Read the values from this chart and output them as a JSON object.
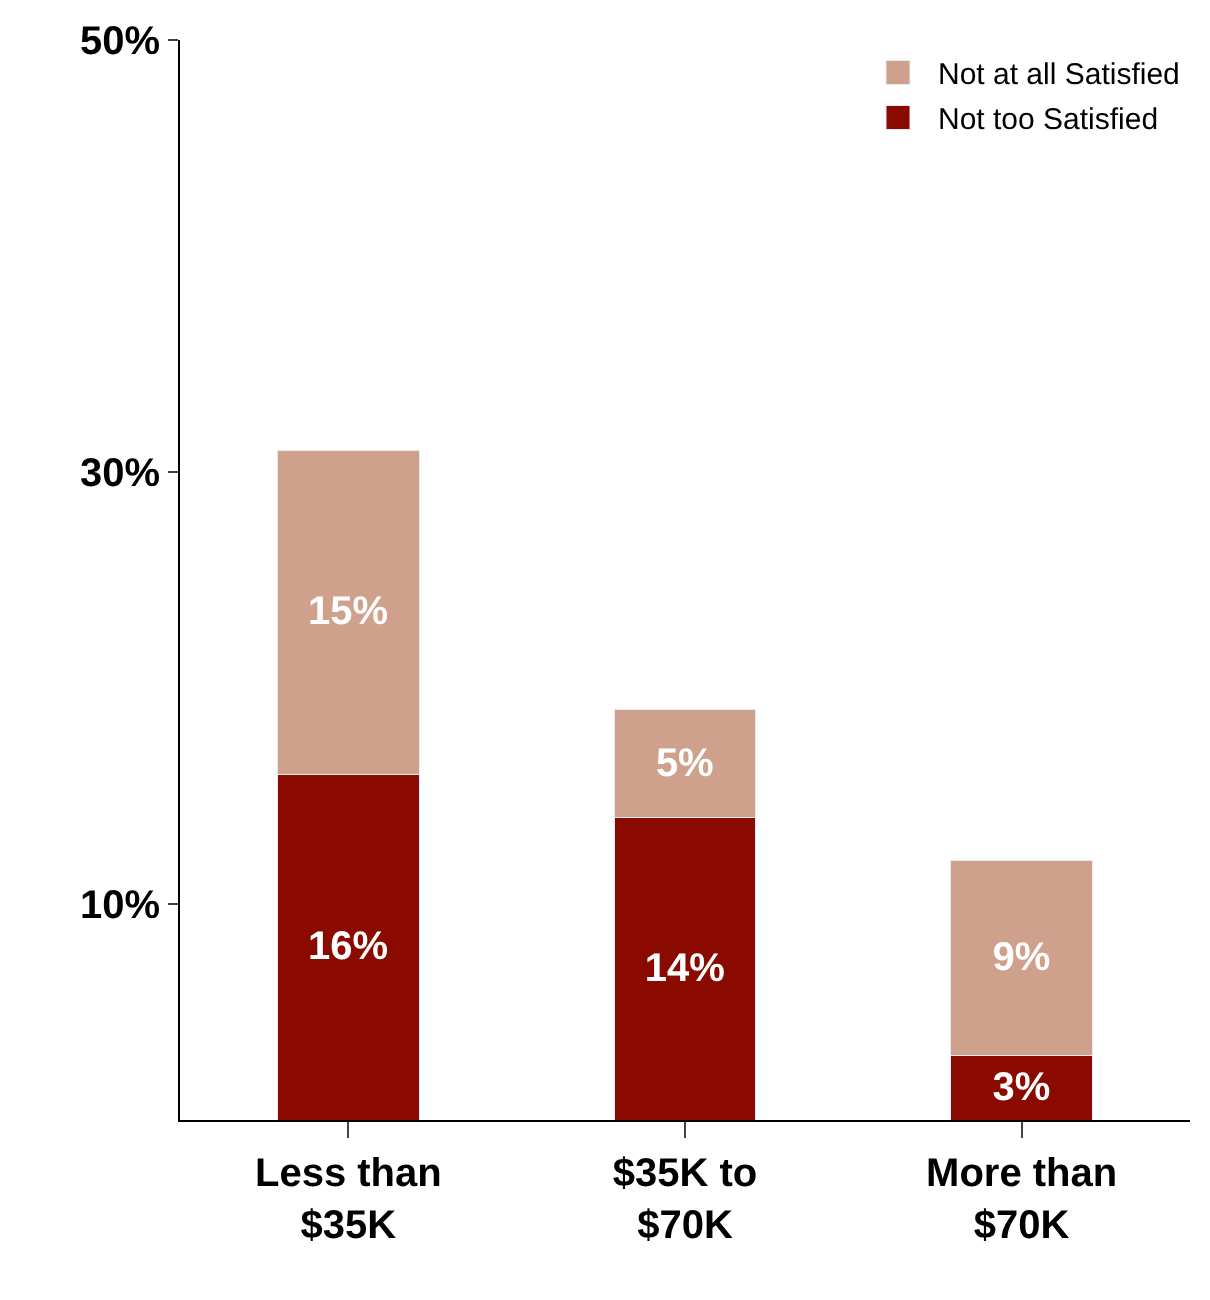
{
  "chart_data": {
    "type": "bar",
    "stacked": true,
    "categories": [
      "Less than $35K",
      "$35K to $70K",
      "More than $70K"
    ],
    "series": [
      {
        "name": "Not too Satisfied",
        "color": "#8b0a00",
        "values": [
          16,
          14,
          3
        ],
        "value_labels": [
          "16%",
          "14%",
          "3%"
        ]
      },
      {
        "name": "Not at all Satisfied",
        "color": "#cfa18d",
        "values": [
          15,
          5,
          9
        ],
        "value_labels": [
          "15%",
          "5%",
          "9%"
        ]
      }
    ],
    "ylim": [
      0,
      50
    ],
    "yticks": [
      {
        "value": 10,
        "label": "10%"
      },
      {
        "value": 30,
        "label": "30%"
      },
      {
        "value": 50,
        "label": "50%"
      }
    ],
    "legend": "top right"
  }
}
